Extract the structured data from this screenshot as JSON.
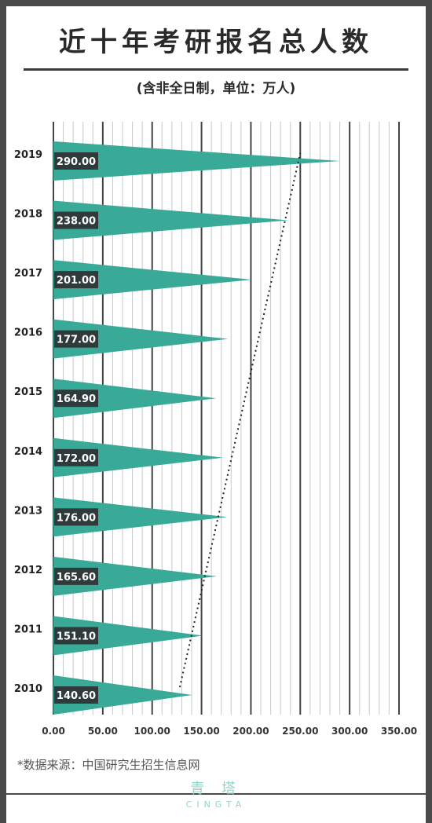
{
  "title": "近十年考研报名总人数",
  "subtitle": "(含非全日制，单位：万人)",
  "source": "*数据来源：中国研究生招生信息网",
  "brand": {
    "name": "青 塔",
    "sub": "CINGTA"
  },
  "colors": {
    "bar": "#3aaa98",
    "label_bg": "#2f3b3a",
    "grid": "#c8c8c8",
    "grid_major": "#444444",
    "trend": "#222222"
  },
  "chart_data": {
    "type": "bar",
    "orientation": "horizontal",
    "bar_shape": "triangle",
    "categories": [
      "2019",
      "2018",
      "2017",
      "2016",
      "2015",
      "2014",
      "2013",
      "2012",
      "2011",
      "2010"
    ],
    "values": [
      290.0,
      238.0,
      201.0,
      177.0,
      164.9,
      172.0,
      176.0,
      165.6,
      151.1,
      140.6
    ],
    "value_labels": [
      "290.00",
      "238.00",
      "201.00",
      "177.00",
      "164.90",
      "172.00",
      "176.00",
      "165.60",
      "151.10",
      "140.60"
    ],
    "xlim": [
      0,
      350
    ],
    "xticks": [
      "0.00",
      "50.00",
      "100.00",
      "150.00",
      "200.00",
      "250.00",
      "300.00",
      "350.00"
    ],
    "grid": true,
    "trend_line": true,
    "title": "近十年考研报名总人数",
    "xlabel": "",
    "ylabel": ""
  }
}
